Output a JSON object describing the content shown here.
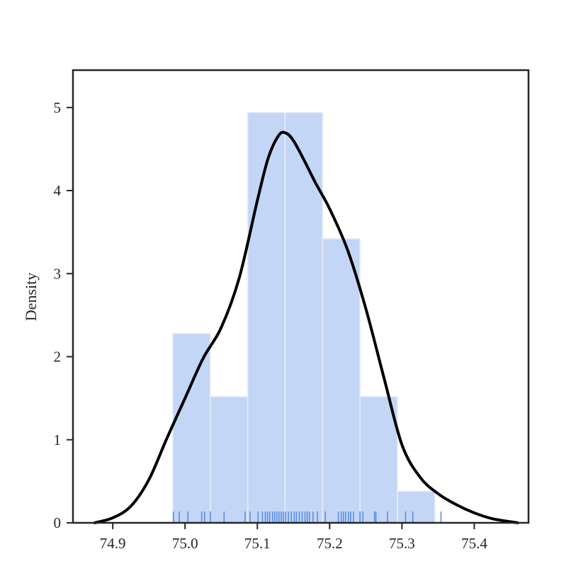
{
  "chart_data": {
    "type": "bar",
    "subtype": "histogram-with-kde-and-rug",
    "title": "",
    "xlabel": "",
    "ylabel": "Density",
    "xlim": [
      74.845,
      75.475
    ],
    "ylim": [
      0,
      5.45
    ],
    "x_ticks": [
      "74.9",
      "75.0",
      "75.1",
      "75.2",
      "75.3",
      "75.4"
    ],
    "y_ticks": [
      "0",
      "1",
      "2",
      "3",
      "4",
      "5"
    ],
    "grid": false,
    "legend": "none",
    "histogram": {
      "bin_edges": [
        74.983,
        75.0348,
        75.0866,
        75.1384,
        75.1902,
        75.242,
        75.2938,
        75.3456
      ],
      "densities": [
        2.28,
        1.52,
        4.94,
        4.94,
        3.42,
        1.52,
        0.38
      ],
      "color": "#c4d6f5",
      "edge_color": "#e6eefb"
    },
    "kde": {
      "x": [
        74.875,
        74.9,
        74.925,
        74.95,
        74.975,
        75.0,
        75.025,
        75.05,
        75.075,
        75.1,
        75.115,
        75.13,
        75.14,
        75.15,
        75.165,
        75.18,
        75.2,
        75.225,
        75.25,
        75.275,
        75.3,
        75.325,
        75.35,
        75.375,
        75.4,
        75.425,
        75.46
      ],
      "y": [
        0.0,
        0.06,
        0.2,
        0.52,
        1.02,
        1.5,
        1.98,
        2.35,
        2.95,
        3.88,
        4.39,
        4.67,
        4.69,
        4.6,
        4.36,
        4.1,
        3.78,
        3.28,
        2.58,
        1.75,
        0.94,
        0.55,
        0.35,
        0.22,
        0.12,
        0.05,
        0.0
      ],
      "color": "#000000"
    },
    "rug": {
      "x": [
        74.984,
        74.992,
        75.004,
        75.023,
        75.027,
        75.035,
        75.054,
        75.083,
        75.09,
        75.101,
        75.107,
        75.111,
        75.114,
        75.117,
        75.121,
        75.124,
        75.127,
        75.13,
        75.133,
        75.136,
        75.139,
        75.143,
        75.147,
        75.151,
        75.154,
        75.158,
        75.162,
        75.166,
        75.169,
        75.172,
        75.177,
        75.183,
        75.194,
        75.212,
        75.216,
        75.219,
        75.222,
        75.226,
        75.229,
        75.233,
        75.242,
        75.246,
        75.262,
        75.264,
        75.28,
        75.305,
        75.315,
        75.354
      ],
      "color": "#5b8ee6"
    }
  }
}
